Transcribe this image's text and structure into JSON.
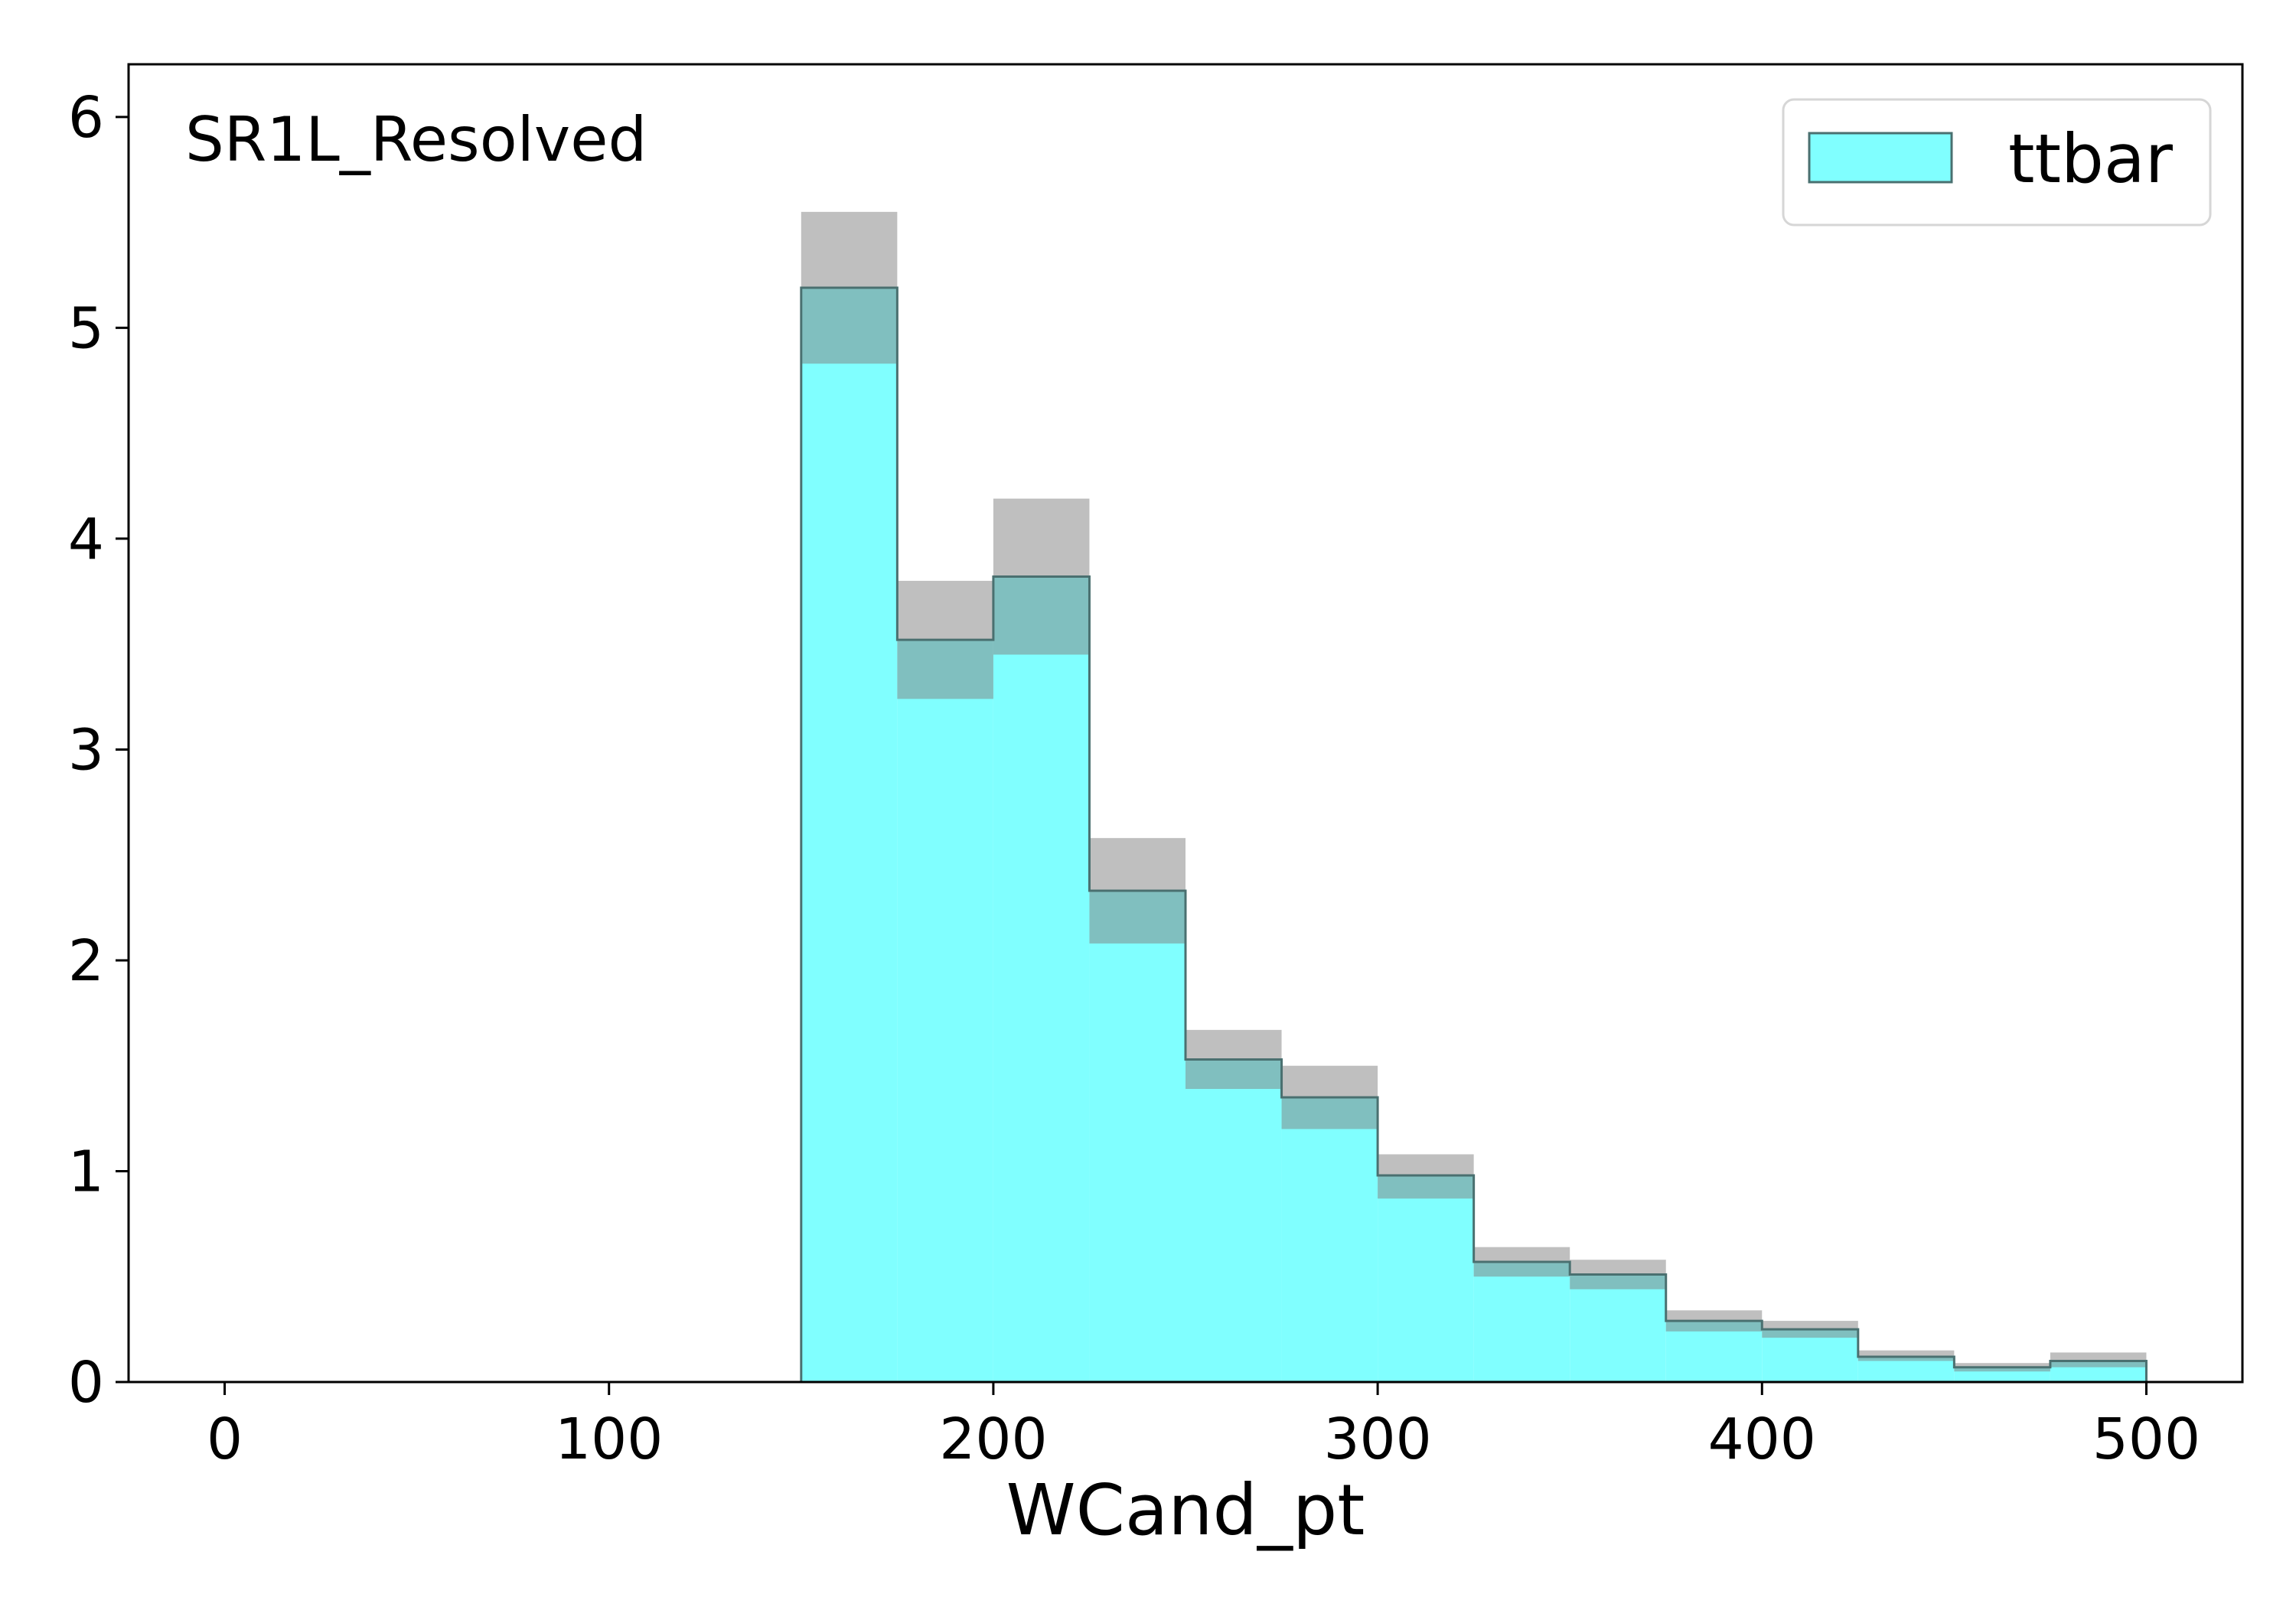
{
  "chart_data": {
    "type": "bar",
    "histogram": true,
    "annotation": "SR1L_Resolved",
    "xlabel": "WCand_pt",
    "ylabel": "",
    "xlim": [
      -25,
      525
    ],
    "ylim": [
      0,
      6.25
    ],
    "xticks": [
      0,
      100,
      200,
      300,
      400,
      500
    ],
    "yticks": [
      0,
      1,
      2,
      3,
      4,
      5,
      6
    ],
    "grid": false,
    "legend_position": "top-right",
    "bin_edges": [
      150,
      175,
      200,
      225,
      250,
      275,
      300,
      325,
      350,
      375,
      400,
      425,
      450,
      475,
      500
    ],
    "series": [
      {
        "name": "ttbar",
        "color": "#80ffff",
        "edgecolor": "#4a7070",
        "values": [
          5.19,
          3.52,
          3.82,
          2.33,
          1.53,
          1.35,
          0.98,
          0.57,
          0.51,
          0.29,
          0.25,
          0.12,
          0.07,
          0.1
        ],
        "uncertainty": {
          "color": "#808080",
          "up": [
            5.55,
            3.8,
            4.19,
            2.58,
            1.67,
            1.5,
            1.08,
            0.64,
            0.58,
            0.34,
            0.29,
            0.15,
            0.09,
            0.14
          ],
          "down": [
            4.83,
            3.24,
            3.45,
            2.08,
            1.39,
            1.2,
            0.87,
            0.5,
            0.44,
            0.24,
            0.21,
            0.1,
            0.05,
            0.07
          ]
        }
      }
    ]
  }
}
